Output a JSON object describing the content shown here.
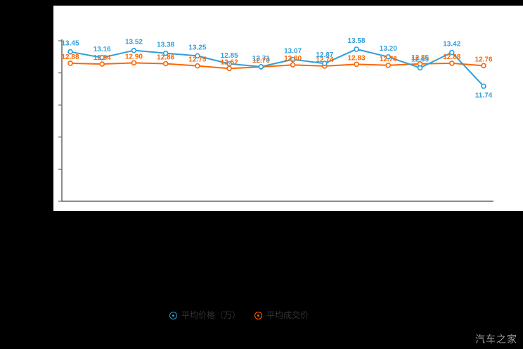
{
  "watermark": {
    "text": "汽车之家",
    "color": "#999999"
  },
  "legend": {
    "items": [
      {
        "label": "平均价格（万）",
        "color": "#2f9fd8"
      },
      {
        "label": "平均成交价",
        "color": "#ff6600"
      }
    ]
  },
  "colors": {
    "background": "#000000",
    "panel": "#ffffff",
    "axis": "#666666",
    "series_blue": "#2f9fd8",
    "series_orange": "#ff6600",
    "legend_text": "#333333"
  },
  "chart_data": {
    "type": "line",
    "title": "",
    "xlabel": "",
    "ylabel": "",
    "x": [
      1,
      2,
      3,
      4,
      5,
      6,
      7,
      8,
      9,
      10,
      11,
      12,
      13,
      14
    ],
    "series": [
      {
        "name": "平均价格（万）",
        "color": "#2f9fd8",
        "values": [
          13.45,
          13.16,
          13.52,
          13.38,
          13.25,
          12.85,
          12.71,
          13.07,
          12.87,
          13.58,
          13.2,
          12.65,
          13.42,
          11.74
        ]
      },
      {
        "name": "平均成交价",
        "color": "#ff6600",
        "values": [
          12.88,
          12.84,
          12.9,
          12.86,
          12.75,
          12.62,
          12.7,
          12.8,
          12.74,
          12.83,
          12.78,
          12.85,
          12.88,
          12.76
        ]
      }
    ],
    "ylim": [
      6,
      14
    ],
    "grid": false,
    "x_tick_labels_visible": false,
    "y_tick_labels_visible": false,
    "data_labels_visible": true,
    "legend_position": "bottom"
  }
}
